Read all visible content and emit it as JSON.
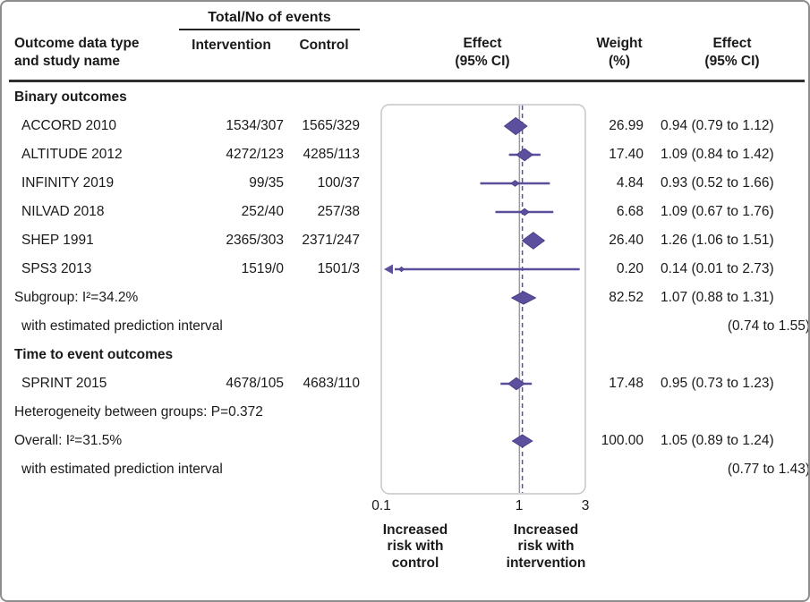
{
  "header": {
    "events_group": "Total/No of events",
    "study_col": "Outcome data type\nand study name",
    "intervention_col": "Intervention",
    "control_col": "Control",
    "effect_plot_col": "Effect\n(95% CI)",
    "weight_col": "Weight\n(%)",
    "effect_text_col": "Effect\n(95% CI)"
  },
  "axis": {
    "tick_0": "0.1",
    "tick_1": "1",
    "tick_2": "3"
  },
  "footnotes": {
    "left": "Increased\nrisk with\ncontrol",
    "right": "Increased\nrisk with\nintervention"
  },
  "colors": {
    "accent": "#5b4f9e",
    "accent_dark": "#4a4086",
    "null_line": "#9b9b9b",
    "box_border": "#c6c6c6"
  },
  "chart_data": {
    "type": "forest",
    "x_scale": "log",
    "x_min": 0.1,
    "x_max": 3,
    "x_ticks": [
      0.1,
      1,
      3
    ],
    "null_line": 1,
    "overall_line": 1.05,
    "rows": [
      {
        "kind": "section",
        "label": "Binary outcomes"
      },
      {
        "kind": "study",
        "label": "ACCORD 2010",
        "intervention": "1534/307",
        "control": "1565/329",
        "est": 0.94,
        "lo": 0.79,
        "hi": 1.12,
        "weight": 26.99,
        "weight_text": "26.99",
        "effect": "0.94 (0.79 to 1.12)"
      },
      {
        "kind": "study",
        "label": "ALTITUDE 2012",
        "intervention": "4272/123",
        "control": "4285/113",
        "est": 1.09,
        "lo": 0.84,
        "hi": 1.42,
        "weight": 17.4,
        "weight_text": "17.40",
        "effect": "1.09 (0.84 to 1.42)"
      },
      {
        "kind": "study",
        "label": "INFINITY 2019",
        "intervention": "99/35",
        "control": "100/37",
        "est": 0.93,
        "lo": 0.52,
        "hi": 1.66,
        "weight": 4.84,
        "weight_text": "4.84",
        "effect": "0.93 (0.52 to 1.66)"
      },
      {
        "kind": "study",
        "label": "NILVAD 2018",
        "intervention": "252/40",
        "control": "257/38",
        "est": 1.09,
        "lo": 0.67,
        "hi": 1.76,
        "weight": 6.68,
        "weight_text": "6.68",
        "effect": "1.09 (0.67 to 1.76)"
      },
      {
        "kind": "study",
        "label": "SHEP 1991",
        "intervention": "2365/303",
        "control": "2371/247",
        "est": 1.26,
        "lo": 1.06,
        "hi": 1.51,
        "weight": 26.4,
        "weight_text": "26.40",
        "effect": "1.26 (1.06 to 1.51)"
      },
      {
        "kind": "study",
        "label": "SPS3 2013",
        "intervention": "1519/0",
        "control": "1501/3",
        "est": 0.14,
        "lo": 0.01,
        "hi": 2.73,
        "weight": 0.2,
        "weight_text": "0.20",
        "effect": "0.14 (0.01 to 2.73)"
      },
      {
        "kind": "summary",
        "label": "Subgroup: I²=34.2%",
        "est": 1.07,
        "lo": 0.88,
        "hi": 1.31,
        "weight_text": "82.52",
        "effect": "1.07 (0.88 to 1.31)"
      },
      {
        "kind": "note",
        "label": "with estimated prediction interval",
        "effect": "(0.74 to 1.55)"
      },
      {
        "kind": "section",
        "label": "Time to event outcomes"
      },
      {
        "kind": "study",
        "label": "SPRINT 2015",
        "intervention": "4678/105",
        "control": "4683/110",
        "est": 0.95,
        "lo": 0.73,
        "hi": 1.23,
        "weight": 17.48,
        "weight_text": "17.48",
        "effect": "0.95 (0.73 to 1.23)"
      },
      {
        "kind": "note",
        "label": "Heterogeneity between groups: P=0.372"
      },
      {
        "kind": "summary",
        "label": "Overall: I²=31.5%",
        "est": 1.05,
        "lo": 0.89,
        "hi": 1.24,
        "weight_text": "100.00",
        "effect": "1.05 (0.89 to 1.24)"
      },
      {
        "kind": "note",
        "label": "with estimated prediction interval",
        "effect": "(0.77 to 1.43)"
      }
    ]
  }
}
